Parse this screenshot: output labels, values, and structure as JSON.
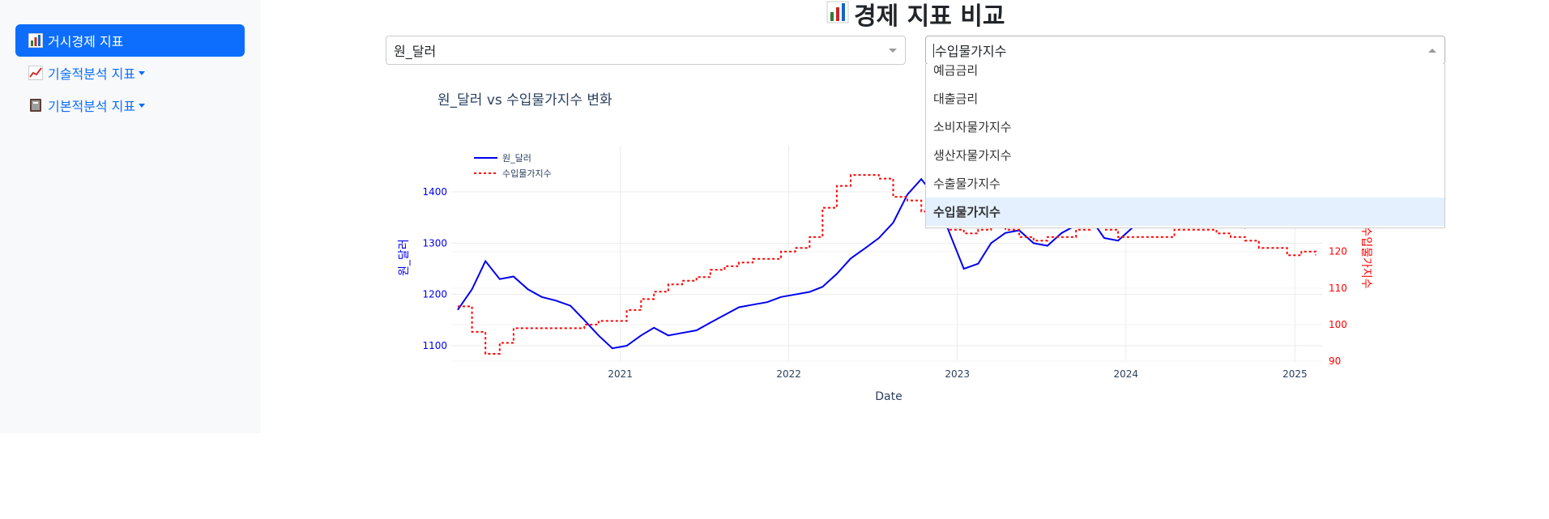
{
  "sidebar": {
    "items": [
      {
        "label": "거시경제 지표",
        "icon": "bar-chart-icon",
        "active": true
      },
      {
        "label": "기술적분석 지표",
        "icon": "trend-chart-icon",
        "active": false
      },
      {
        "label": "기본적분석 지표",
        "icon": "book-icon",
        "active": false
      }
    ]
  },
  "header": {
    "title": "경제 지표 비교",
    "icon": "bar-chart-icon"
  },
  "dropdowns": {
    "left": {
      "value": "원_달러"
    },
    "right": {
      "value": "수입물가지수",
      "options": [
        "예금금리",
        "대출금리",
        "소비자물가지수",
        "생산자물가지수",
        "수출물가지수",
        "수입물가지수"
      ],
      "selected": "수입물가지수"
    }
  },
  "colors": {
    "accent": "#0d6efd",
    "series1": "#0000ee",
    "series2": "#ff0000"
  },
  "chart_data": {
    "type": "line",
    "title": "원_달러 vs 수입물가지수 변화",
    "xlabel": "Date",
    "ylabel_left": "원_달러",
    "ylabel_right": "수입물가지수",
    "x_ticks": [
      "2021",
      "2022",
      "2023",
      "2024",
      "2025"
    ],
    "y_left_ticks": [
      1100,
      1200,
      1300,
      1400
    ],
    "y_right_ticks": [
      90,
      100,
      110,
      120
    ],
    "xlim": [
      "2020-01-01",
      "2025-03-01"
    ],
    "ylim_left": [
      1070,
      1490
    ],
    "ylim_right": [
      90,
      149
    ],
    "legend_position": "top-left",
    "series": [
      {
        "name": "원_달러",
        "axis": "left",
        "style": "solid",
        "x": [
          "2020-01",
          "2020-02",
          "2020-03",
          "2020-04",
          "2020-05",
          "2020-06",
          "2020-07",
          "2020-08",
          "2020-09",
          "2020-10",
          "2020-11",
          "2020-12",
          "2021-01",
          "2021-02",
          "2021-03",
          "2021-04",
          "2021-05",
          "2021-06",
          "2021-07",
          "2021-08",
          "2021-09",
          "2021-10",
          "2021-11",
          "2021-12",
          "2022-01",
          "2022-02",
          "2022-03",
          "2022-04",
          "2022-05",
          "2022-06",
          "2022-07",
          "2022-08",
          "2022-09",
          "2022-10",
          "2022-11",
          "2022-12",
          "2023-01",
          "2023-02",
          "2023-03",
          "2023-04",
          "2023-05",
          "2023-06",
          "2023-07",
          "2023-08",
          "2023-09",
          "2023-10",
          "2023-11",
          "2023-12",
          "2024-01",
          "2024-02",
          "2024-03",
          "2024-04",
          "2024-05",
          "2024-06",
          "2024-07",
          "2024-08",
          "2024-09",
          "2024-10",
          "2024-11",
          "2024-12",
          "2025-01",
          "2025-02"
        ],
        "values": [
          1170,
          1210,
          1265,
          1230,
          1235,
          1210,
          1195,
          1188,
          1178,
          1150,
          1120,
          1095,
          1100,
          1120,
          1135,
          1120,
          1125,
          1130,
          1145,
          1160,
          1175,
          1180,
          1185,
          1195,
          1200,
          1205,
          1215,
          1240,
          1270,
          1290,
          1310,
          1340,
          1395,
          1425,
          1390,
          1320,
          1250,
          1260,
          1300,
          1320,
          1325,
          1300,
          1295,
          1320,
          1335,
          1350,
          1310,
          1305,
          1330,
          1335,
          1340,
          1370,
          1365,
          1385,
          1380,
          1340,
          1330,
          1360,
          1400,
          1440,
          1450,
          1440
        ]
      },
      {
        "name": "수입물가지수",
        "axis": "right",
        "style": "dotted",
        "x": [
          "2020-01",
          "2020-02",
          "2020-03",
          "2020-04",
          "2020-05",
          "2020-06",
          "2020-07",
          "2020-08",
          "2020-09",
          "2020-10",
          "2020-11",
          "2020-12",
          "2021-01",
          "2021-02",
          "2021-03",
          "2021-04",
          "2021-05",
          "2021-06",
          "2021-07",
          "2021-08",
          "2021-09",
          "2021-10",
          "2021-11",
          "2021-12",
          "2022-01",
          "2022-02",
          "2022-03",
          "2022-04",
          "2022-05",
          "2022-06",
          "2022-07",
          "2022-08",
          "2022-09",
          "2022-10",
          "2022-11",
          "2022-12",
          "2023-01",
          "2023-02",
          "2023-03",
          "2023-04",
          "2023-05",
          "2023-06",
          "2023-07",
          "2023-08",
          "2023-09",
          "2023-10",
          "2023-11",
          "2023-12",
          "2024-01",
          "2024-02",
          "2024-03",
          "2024-04",
          "2024-05",
          "2024-06",
          "2024-07",
          "2024-08",
          "2024-09",
          "2024-10",
          "2024-11",
          "2024-12",
          "2025-01",
          "2025-02"
        ],
        "values": [
          105,
          98,
          92,
          95,
          99,
          99,
          99,
          99,
          99,
          100,
          101,
          101,
          104,
          107,
          109,
          111,
          112,
          113,
          115,
          116,
          117,
          118,
          118,
          120,
          121,
          124,
          132,
          138,
          141,
          141,
          140,
          135,
          134,
          131,
          128,
          126,
          125,
          126,
          127,
          126,
          124,
          123,
          124,
          124,
          126,
          127,
          126,
          124,
          124,
          124,
          124,
          126,
          126,
          126,
          125,
          124,
          123,
          121,
          121,
          119,
          120,
          119
        ]
      }
    ]
  }
}
